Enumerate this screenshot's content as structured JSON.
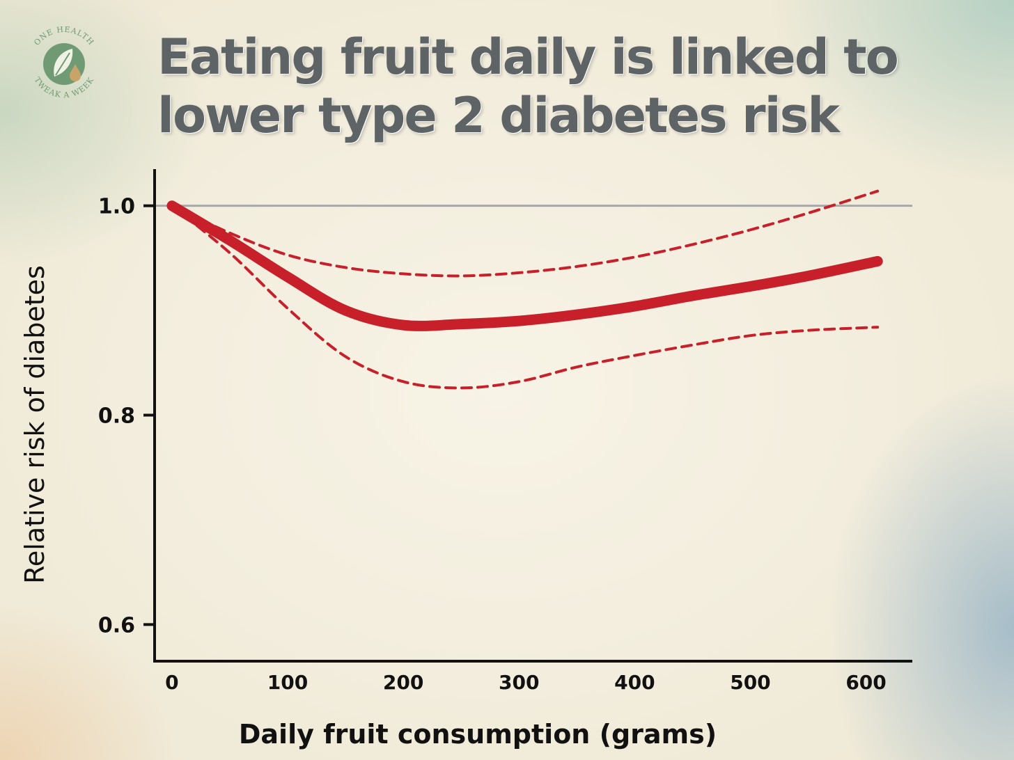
{
  "logo": {
    "ring_top": "ONE HEALTH",
    "ring_bottom": "TWEAK A WEEK",
    "icon": "leaf-drop-icon"
  },
  "header": {
    "title_line1": "Eating fruit daily is linked to",
    "title_line2": "lower type 2 diabetes risk"
  },
  "colors": {
    "curve": "#c8202a",
    "reference_line": "#a8a8a8",
    "title_text": "#5e6366",
    "axis": "#111111"
  },
  "chart_data": {
    "type": "line",
    "title": "Eating fruit daily is linked to lower type 2 diabetes risk",
    "xlabel": "Daily fruit consumption (grams)",
    "ylabel": "Relative risk of diabetes",
    "xlim": [
      -15,
      640
    ],
    "ylim": [
      0.565,
      1.035
    ],
    "x_ticks": [
      0,
      100,
      200,
      300,
      400,
      500,
      600
    ],
    "y_ticks": [
      0.6,
      0.8,
      1.0
    ],
    "x_tick_labels": [
      "0",
      "100",
      "200",
      "300",
      "400",
      "500",
      "600"
    ],
    "y_tick_labels": [
      "0.6",
      "0.8",
      "1.0"
    ],
    "reference_line_y": 1.0,
    "grid": false,
    "legend": "none",
    "series": [
      {
        "role": "estimate",
        "style": "solid",
        "x": [
          0,
          50,
          100,
          150,
          200,
          250,
          300,
          350,
          400,
          450,
          500,
          550,
          610
        ],
        "values": [
          1.0,
          0.967,
          0.932,
          0.9,
          0.886,
          0.887,
          0.89,
          0.896,
          0.904,
          0.914,
          0.923,
          0.933,
          0.947
        ]
      },
      {
        "role": "upper_ci",
        "style": "dashed",
        "x": [
          0,
          50,
          100,
          150,
          200,
          250,
          300,
          350,
          400,
          450,
          500,
          550,
          610
        ],
        "values": [
          1.0,
          0.974,
          0.953,
          0.941,
          0.935,
          0.933,
          0.936,
          0.942,
          0.951,
          0.963,
          0.977,
          0.993,
          1.014
        ]
      },
      {
        "role": "lower_ci",
        "style": "dashed",
        "x": [
          0,
          50,
          100,
          150,
          200,
          250,
          300,
          350,
          400,
          450,
          500,
          550,
          610
        ],
        "values": [
          1.0,
          0.955,
          0.902,
          0.856,
          0.832,
          0.826,
          0.832,
          0.846,
          0.857,
          0.867,
          0.876,
          0.881,
          0.884
        ]
      }
    ]
  }
}
